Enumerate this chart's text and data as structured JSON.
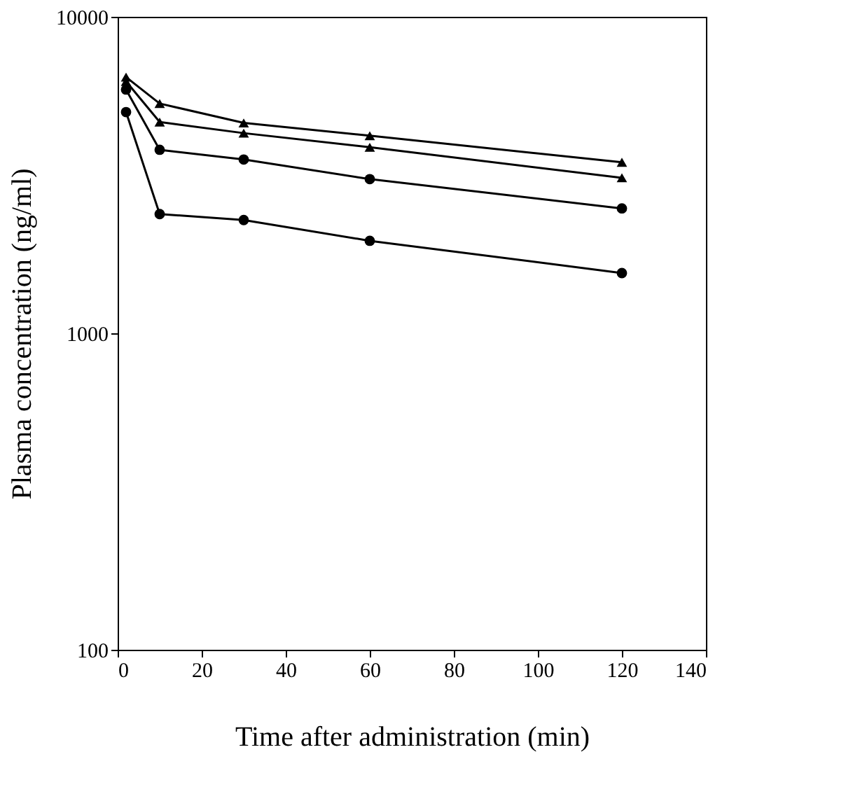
{
  "chart_data": {
    "type": "line",
    "xlabel": "Time after administration (min)",
    "ylabel": "Plasma concentration (ng/ml)",
    "xlim": [
      0,
      140
    ],
    "xticks": [
      0,
      20,
      40,
      60,
      80,
      100,
      120,
      140
    ],
    "ylim": [
      100,
      10000
    ],
    "yticks": [
      100,
      1000,
      10000
    ],
    "log": "y",
    "grid": false,
    "legend": false,
    "line_style": "solid",
    "series": [
      {
        "x": [
          2,
          10,
          30,
          60,
          120
        ],
        "values": [
          6450,
          5320,
          4620,
          4210,
          3470
        ],
        "color": "#000000",
        "marker": "triangle"
      },
      {
        "x": [
          2,
          10,
          30,
          60,
          120
        ],
        "values": [
          6250,
          4650,
          4290,
          3870,
          3100
        ],
        "color": "#000000",
        "marker": "triangle"
      },
      {
        "x": [
          2,
          10,
          30,
          60,
          120
        ],
        "values": [
          5890,
          3800,
          3540,
          3070,
          2480
        ],
        "color": "#000000",
        "marker": "circle"
      },
      {
        "x": [
          2,
          10,
          30,
          60,
          120
        ],
        "values": [
          5000,
          2380,
          2280,
          1960,
          1550
        ],
        "color": "#000000",
        "marker": "circle"
      }
    ]
  }
}
